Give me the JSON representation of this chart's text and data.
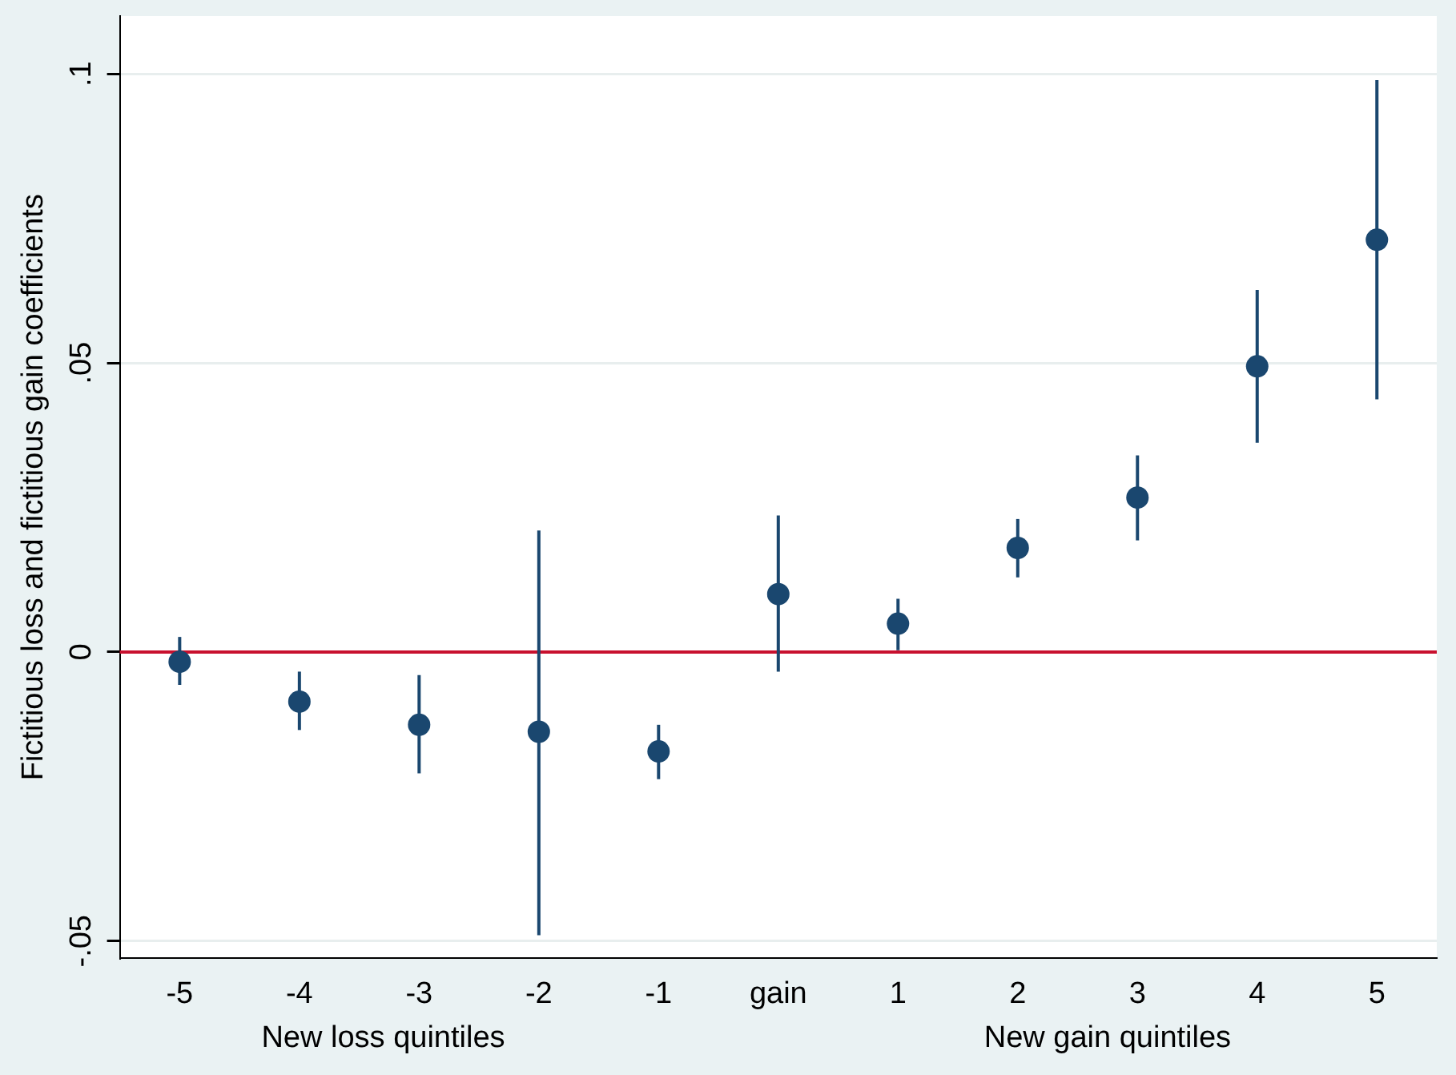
{
  "chart_data": {
    "type": "scatter",
    "ylabel": "Fictitious loss and fictitious gain coefficients",
    "categories": [
      "-5",
      "-4",
      "-3",
      "-2",
      "-1",
      "gain",
      "1",
      "2",
      "3",
      "4",
      "5"
    ],
    "series": [
      {
        "color": "#1a476f",
        "values": [
          -0.0017,
          -0.0086,
          -0.0126,
          -0.0138,
          -0.0172,
          0.01,
          0.0049,
          0.018,
          0.0267,
          0.0494,
          0.0713
        ],
        "errors": [
          [
            -0.0057,
            0.0026
          ],
          [
            -0.0135,
            -0.0034
          ],
          [
            -0.021,
            -0.004
          ],
          [
            -0.049,
            0.021
          ],
          [
            -0.022,
            -0.0126
          ],
          [
            -0.0034,
            0.0236
          ],
          [
            0.0003,
            0.0092
          ],
          [
            0.0129,
            0.023
          ],
          [
            0.0193,
            0.034
          ],
          [
            0.0362,
            0.0626
          ],
          [
            0.0437,
            0.0989
          ]
        ]
      }
    ],
    "ylim": [
      -0.053,
      0.11
    ],
    "yticks": [
      {
        "value": -0.05,
        "label": "-.05"
      },
      0,
      {
        "value": 0.05,
        "label": ".05"
      },
      {
        "value": 0.1,
        "label": ".1"
      }
    ],
    "ref_lines": [
      {
        "axis": "y",
        "value": 0,
        "color": "#c8102e"
      }
    ],
    "annotations": [
      "New loss quintiles",
      "New gain quintiles"
    ],
    "grid": "y",
    "marker": "circle",
    "legend": false
  }
}
